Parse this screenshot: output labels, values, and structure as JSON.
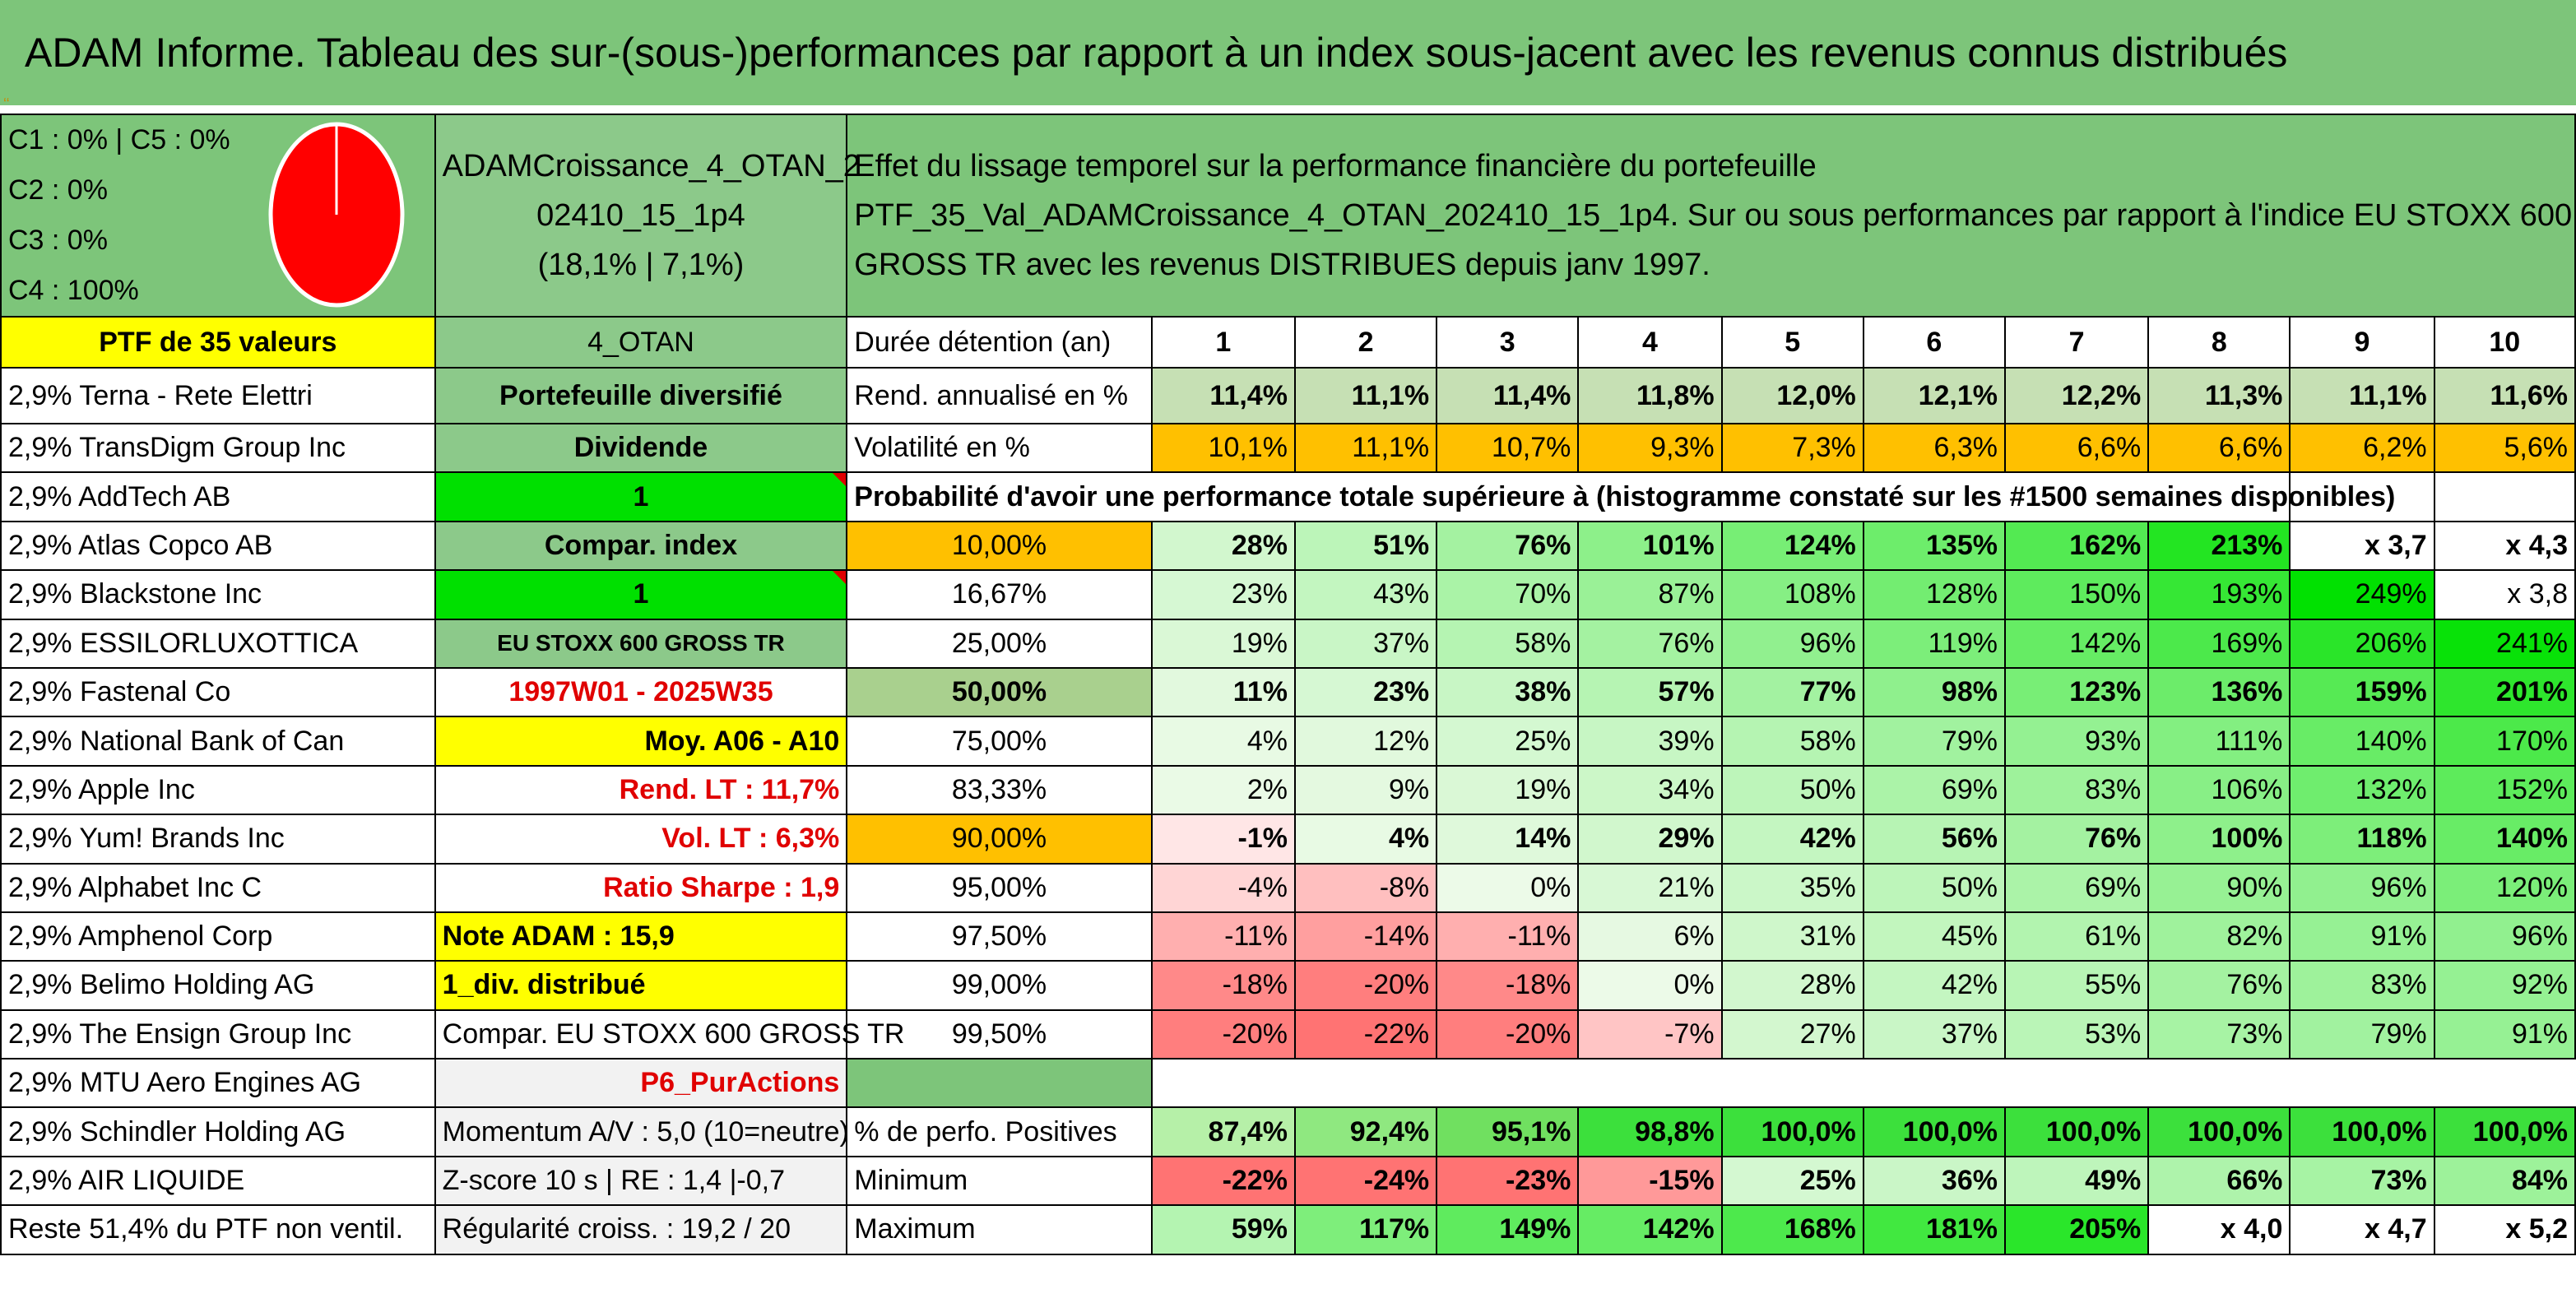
{
  "title": "ADAM Informe. Tableau des sur-(sous-)performances par rapport à un index sous-jacent avec les revenus connus distribués",
  "mark": "‘‘",
  "classes": [
    "C1 : 0% | C5 : 0%",
    "C2 : 0%",
    "C3 : 0%",
    "C4 : 100%"
  ],
  "pie_chart": {
    "type": "pie",
    "slices": [
      {
        "label": "C4",
        "value": 100,
        "color": "#ff0000"
      }
    ]
  },
  "portfolio_name_lines": [
    "ADAMCroissance_4_OTAN_2",
    "02410_15_1p4",
    "(18,1% | 7,1%)"
  ],
  "description_lines": [
    "Effet du lissage temporel sur la performance financière du portefeuille",
    "PTF_35_Val_ADAMCroissance_4_OTAN_202410_15_1p4. Sur ou sous performances par rapport à l'indice EU STOXX 600",
    "GROSS TR avec les revenus DISTRIBUES depuis janv 1997."
  ],
  "ptf_label": "PTF de 35 valeurs",
  "otan_label": "4_OTAN",
  "duration_label": "Durée détention (an)",
  "years": [
    "1",
    "2",
    "3",
    "4",
    "5",
    "6",
    "7",
    "8",
    "9",
    "10"
  ],
  "rend_label": "Rend. annualisé en %",
  "rend": [
    "11,4%",
    "11,1%",
    "11,4%",
    "11,8%",
    "12,0%",
    "12,1%",
    "12,2%",
    "11,3%",
    "11,1%",
    "11,6%"
  ],
  "vol_label": "Volatilité en %",
  "vol": [
    "10,1%",
    "11,1%",
    "10,7%",
    "9,3%",
    "7,3%",
    "6,3%",
    "6,6%",
    "6,6%",
    "6,2%",
    "5,6%"
  ],
  "prob_label": "Probabilité d'avoir une performance totale supérieure à (histogramme constaté sur les #1500 semaines disponibles)",
  "holdings": [
    "2,9% Terna - Rete Elettri",
    "2,9% TransDigm Group Inc",
    "2,9% AddTech AB",
    "2,9% Atlas Copco AB",
    "2,9% Blackstone Inc",
    "2,9% ESSILORLUXOTTICA",
    "2,9% Fastenal Co",
    "2,9% National Bank of Can",
    "2,9% Apple Inc",
    "2,9% Yum! Brands Inc",
    "2,9% Alphabet Inc C",
    "2,9% Amphenol Corp",
    "2,9% Belimo Holding AG",
    "2,9% The Ensign Group Inc",
    "2,9% MTU Aero Engines AG",
    "2,9% Schindler Holding AG",
    "2,9% AIR LIQUIDE",
    "Reste 51,4% du PTF non ventil."
  ],
  "info": [
    "Portefeuille diversifié",
    "Dividende",
    "1",
    "Compar. index",
    "1",
    "EU STOXX 600 GROSS TR",
    "1997W01 - 2025W35",
    "Moy. A06 - A10",
    "Rend. LT : 11,7%",
    "Vol. LT : 6,3%",
    "Ratio Sharpe : 1,9",
    "Note ADAM : 15,9",
    "1_div. distribué",
    "Compar. EU STOXX 600 GROSS TR",
    "P6_PurActions",
    "Momentum A/V : 5,0 (10=neutre)",
    "Z-score 10 s | RE : 1,4 |-0,7",
    "Régularité croiss. : 19,2 / 20"
  ],
  "quantile_rows": [
    {
      "p": "10,00%",
      "v": [
        "28%",
        "51%",
        "76%",
        "101%",
        "124%",
        "135%",
        "162%",
        "213%",
        "x 3,7",
        "x 4,3"
      ]
    },
    {
      "p": "16,67%",
      "v": [
        "23%",
        "43%",
        "70%",
        "87%",
        "108%",
        "128%",
        "150%",
        "193%",
        "249%",
        "x 3,8"
      ]
    },
    {
      "p": "25,00%",
      "v": [
        "19%",
        "37%",
        "58%",
        "76%",
        "96%",
        "119%",
        "142%",
        "169%",
        "206%",
        "241%"
      ]
    },
    {
      "p": "50,00%",
      "v": [
        "11%",
        "23%",
        "38%",
        "57%",
        "77%",
        "98%",
        "123%",
        "136%",
        "159%",
        "201%"
      ]
    },
    {
      "p": "75,00%",
      "v": [
        "4%",
        "12%",
        "25%",
        "39%",
        "58%",
        "79%",
        "93%",
        "111%",
        "140%",
        "170%"
      ]
    },
    {
      "p": "83,33%",
      "v": [
        "2%",
        "9%",
        "19%",
        "34%",
        "50%",
        "69%",
        "83%",
        "106%",
        "132%",
        "152%"
      ]
    },
    {
      "p": "90,00%",
      "v": [
        "-1%",
        "4%",
        "14%",
        "29%",
        "42%",
        "56%",
        "76%",
        "100%",
        "118%",
        "140%"
      ]
    },
    {
      "p": "95,00%",
      "v": [
        "-4%",
        "-8%",
        "0%",
        "21%",
        "35%",
        "50%",
        "69%",
        "90%",
        "96%",
        "120%"
      ]
    },
    {
      "p": "97,50%",
      "v": [
        "-11%",
        "-14%",
        "-11%",
        "6%",
        "31%",
        "45%",
        "61%",
        "82%",
        "91%",
        "96%"
      ]
    },
    {
      "p": "99,00%",
      "v": [
        "-18%",
        "-20%",
        "-18%",
        "0%",
        "28%",
        "42%",
        "55%",
        "76%",
        "83%",
        "92%"
      ]
    },
    {
      "p": "99,50%",
      "v": [
        "-20%",
        "-22%",
        "-20%",
        "-7%",
        "27%",
        "37%",
        "53%",
        "73%",
        "79%",
        "91%"
      ]
    }
  ],
  "pos_label": "% de perfo. Positives",
  "pos": [
    "87,4%",
    "92,4%",
    "95,1%",
    "98,8%",
    "100,0%",
    "100,0%",
    "100,0%",
    "100,0%",
    "100,0%",
    "100,0%"
  ],
  "min_label": "Minimum",
  "min": [
    "-22%",
    "-24%",
    "-23%",
    "-15%",
    "25%",
    "36%",
    "49%",
    "66%",
    "73%",
    "84%"
  ],
  "max_label": "Maximum",
  "max": [
    "59%",
    "117%",
    "149%",
    "142%",
    "168%",
    "181%",
    "205%",
    "x 4,0",
    "x 4,7",
    "x 5,2"
  ],
  "colors": {
    "header_green": "#7dc57a",
    "yellow": "#ffff00",
    "bright_green": "#00e000",
    "orange": "#ffc000",
    "pale_green": "#c6e0b4",
    "red": "#ff0000"
  }
}
